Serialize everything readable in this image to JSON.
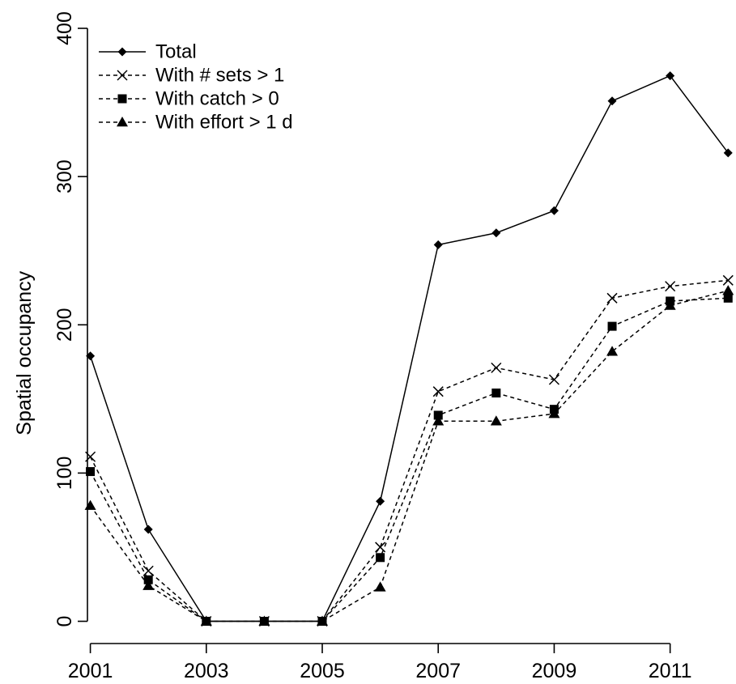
{
  "chart_data": {
    "type": "line",
    "title": "",
    "xlabel": "",
    "ylabel": "Spatial occupancy",
    "x": [
      2001,
      2002,
      2003,
      2004,
      2005,
      2006,
      2007,
      2008,
      2009,
      2010,
      2011,
      2012
    ],
    "xticks": [
      2001,
      2003,
      2005,
      2007,
      2009,
      2011
    ],
    "yticks": [
      0,
      100,
      200,
      300,
      400
    ],
    "xlim": [
      2000.95,
      2012.15
    ],
    "ylim": [
      -15,
      400
    ],
    "grid": false,
    "legend_position": "top-left",
    "series": [
      {
        "name": "Total",
        "marker": "diamond",
        "line": "solid",
        "color": "#000000",
        "values": [
          179,
          62,
          0,
          0,
          0,
          81,
          254,
          262,
          277,
          351,
          368,
          316
        ]
      },
      {
        "name": "With # sets > 1",
        "marker": "cross",
        "line": "dashed",
        "color": "#000000",
        "values": [
          111,
          34,
          0,
          0,
          0,
          50,
          155,
          171,
          163,
          218,
          226,
          230
        ]
      },
      {
        "name": "With catch > 0",
        "marker": "square",
        "line": "dashed",
        "color": "#000000",
        "values": [
          101,
          28,
          0,
          0,
          0,
          43,
          139,
          154,
          143,
          199,
          216,
          218
        ]
      },
      {
        "name": "With effort > 1 d",
        "marker": "triangle",
        "line": "dashed",
        "color": "#000000",
        "values": [
          78,
          24,
          0,
          0,
          0,
          23,
          135,
          135,
          140,
          182,
          213,
          223
        ]
      }
    ]
  }
}
